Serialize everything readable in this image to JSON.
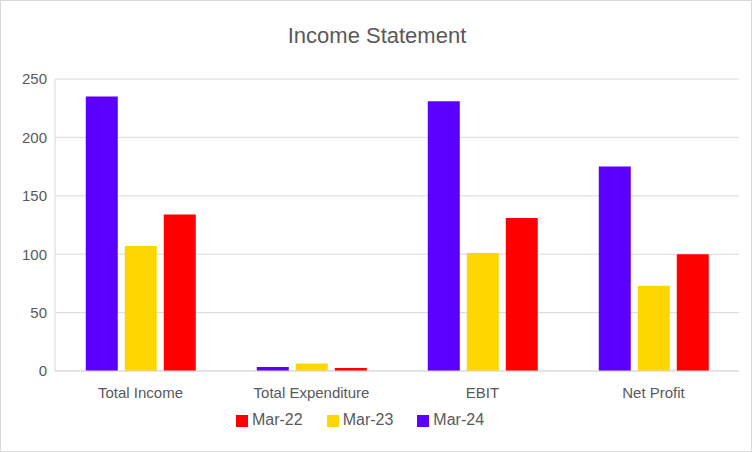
{
  "chart_data": {
    "type": "bar",
    "title": "Income Statement",
    "categories": [
      "Total Income",
      "Total Expenditure",
      "EBIT",
      "Net Profit"
    ],
    "series": [
      {
        "name": "Mar-24",
        "color": "#5B00FF",
        "values": [
          235,
          3.5,
          231,
          175
        ]
      },
      {
        "name": "Mar-23",
        "color": "#FFD700",
        "values": [
          107,
          6.5,
          101,
          73
        ]
      },
      {
        "name": "Mar-22",
        "color": "#FF0000",
        "values": [
          134,
          2.5,
          131,
          100
        ]
      }
    ],
    "ylim": [
      0,
      250
    ],
    "yticks": [
      0,
      50,
      100,
      150,
      200,
      250
    ],
    "grid": true,
    "legend": "bottom"
  }
}
